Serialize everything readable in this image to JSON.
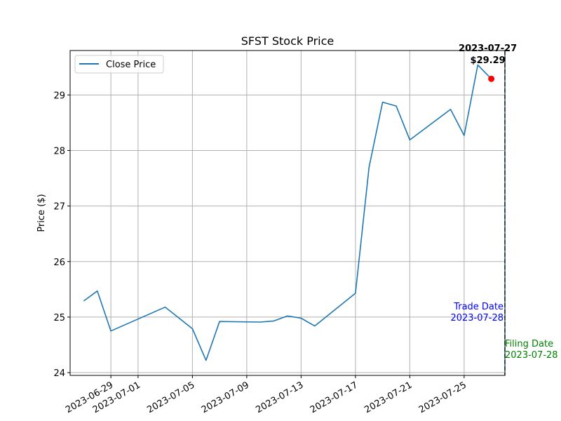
{
  "chart_data": {
    "type": "line",
    "title": "SFST Stock Price",
    "xlabel": "",
    "ylabel": "Price ($)",
    "xlim": [
      "2023-06-26",
      "2023-07-28"
    ],
    "ylim": [
      23.95,
      29.8
    ],
    "x_ticks": [
      "2023-06-29",
      "2023-07-01",
      "2023-07-05",
      "2023-07-09",
      "2023-07-13",
      "2023-07-17",
      "2023-07-21",
      "2023-07-25"
    ],
    "y_ticks": [
      24,
      25,
      26,
      27,
      28,
      29
    ],
    "grid": true,
    "legend_position": "upper-left",
    "series": [
      {
        "name": "Close Price",
        "color": "#1f77b4",
        "points": [
          {
            "x": "2023-06-27",
            "y": 25.29
          },
          {
            "x": "2023-06-28",
            "y": 25.47
          },
          {
            "x": "2023-06-29",
            "y": 24.75
          },
          {
            "x": "2023-07-03",
            "y": 25.18
          },
          {
            "x": "2023-07-05",
            "y": 24.79
          },
          {
            "x": "2023-07-06",
            "y": 24.22
          },
          {
            "x": "2023-07-07",
            "y": 24.92
          },
          {
            "x": "2023-07-10",
            "y": 24.91
          },
          {
            "x": "2023-07-11",
            "y": 24.93
          },
          {
            "x": "2023-07-12",
            "y": 25.02
          },
          {
            "x": "2023-07-13",
            "y": 24.98
          },
          {
            "x": "2023-07-14",
            "y": 24.84
          },
          {
            "x": "2023-07-17",
            "y": 25.43
          },
          {
            "x": "2023-07-18",
            "y": 27.7
          },
          {
            "x": "2023-07-19",
            "y": 28.87
          },
          {
            "x": "2023-07-20",
            "y": 28.8
          },
          {
            "x": "2023-07-21",
            "y": 28.19
          },
          {
            "x": "2023-07-24",
            "y": 28.74
          },
          {
            "x": "2023-07-25",
            "y": 28.27
          },
          {
            "x": "2023-07-26",
            "y": 29.54
          },
          {
            "x": "2023-07-27",
            "y": 29.29
          }
        ]
      }
    ],
    "highlight": {
      "x": "2023-07-27",
      "y": 29.29,
      "color": "#ff0000",
      "label_date": "2023-07-27",
      "label_price": "$29.29"
    },
    "vlines": [
      {
        "x": "2023-07-28",
        "color": "#0000ff",
        "label_line1": "Trade Date",
        "label_line2": "2023-07-28"
      },
      {
        "x": "2023-07-28",
        "color": "#008000",
        "label_line1": "Filing Date",
        "label_line2": "2023-07-28"
      }
    ]
  }
}
